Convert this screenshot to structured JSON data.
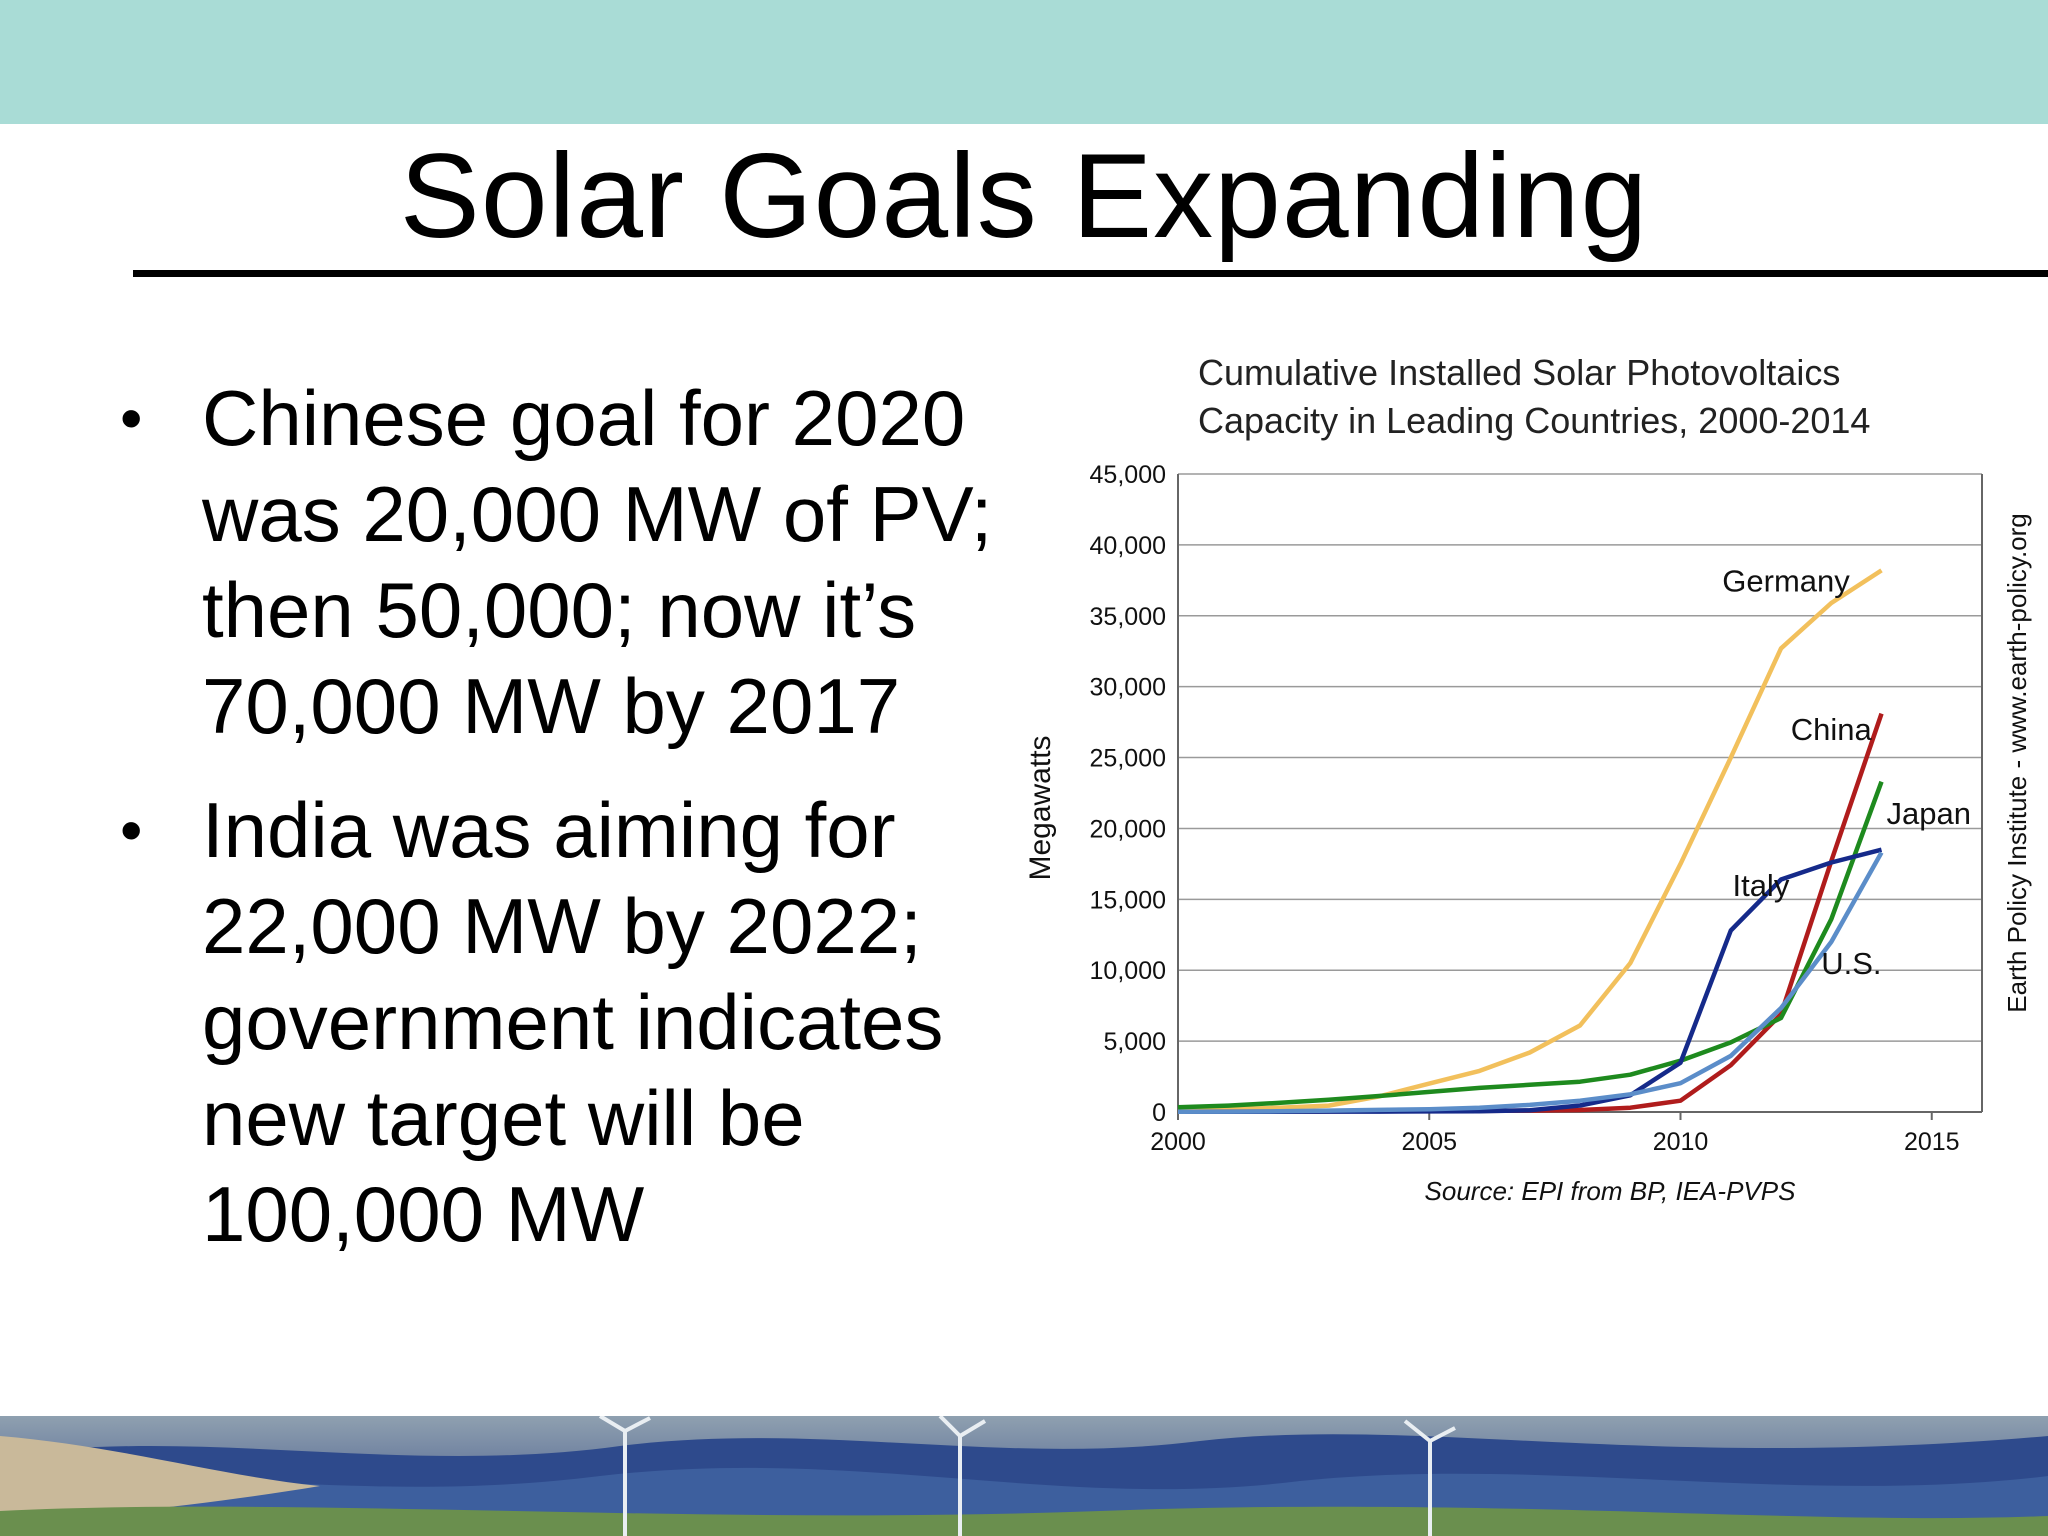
{
  "slide": {
    "title": "Solar Goals Expanding",
    "bullets": [
      "Chinese goal for 2020\nwas 20,000 MW of PV;\nthen 50,000; now it’s\n70,000 MW by 2017",
      "India was aiming for\n22,000 MW by 2022;\ngovernment indicates\nnew target will be\n100,000 MW"
    ],
    "bullet_glyph": "•",
    "colors": {
      "top_band": "#a9dcd6"
    }
  },
  "chart_data": {
    "type": "line",
    "title": "Cumulative Installed Solar Photovoltaics\nCapacity in Leading Countries, 2000-2014",
    "xlabel": "",
    "ylabel": "Megawatts",
    "source": "Source: EPI from BP, IEA-PVPS",
    "side_credit": "Earth Policy Institute - www.earth-policy.org",
    "xlim": [
      2000,
      2016
    ],
    "ylim": [
      0,
      45000
    ],
    "xticks": [
      2000,
      2005,
      2010,
      2015
    ],
    "xtick_labels": [
      "2000",
      "2005",
      "2010",
      "2015"
    ],
    "yticks": [
      0,
      5000,
      10000,
      15000,
      20000,
      25000,
      30000,
      35000,
      40000,
      45000
    ],
    "ytick_labels": [
      "0",
      "5,000",
      "10,000",
      "15,000",
      "20,000",
      "25,000",
      "30,000",
      "35,000",
      "40,000",
      "45,000"
    ],
    "grid": true,
    "legend": "inline labels",
    "x": [
      2000,
      2001,
      2002,
      2003,
      2004,
      2005,
      2006,
      2007,
      2008,
      2009,
      2010,
      2011,
      2012,
      2013,
      2014
    ],
    "series": [
      {
        "name": "Germany",
        "color": "#f2c05c",
        "values": [
          100,
          180,
          300,
          450,
          1100,
          2000,
          2900,
          4200,
          6100,
          10500,
          17500,
          25000,
          32700,
          35900,
          38200
        ]
      },
      {
        "name": "China",
        "color": "#b01c1c",
        "values": [
          20,
          25,
          30,
          40,
          60,
          70,
          80,
          100,
          140,
          300,
          800,
          3300,
          6900,
          17700,
          28100
        ]
      },
      {
        "name": "Japan",
        "color": "#1e8a1e",
        "values": [
          330,
          450,
          640,
          860,
          1130,
          1420,
          1700,
          1920,
          2140,
          2630,
          3620,
          4910,
          6630,
          13600,
          23300
        ]
      },
      {
        "name": "Italy",
        "color": "#152a8a",
        "values": [
          20,
          20,
          22,
          26,
          30,
          40,
          50,
          120,
          460,
          1180,
          3480,
          12800,
          16400,
          17600,
          18500
        ]
      },
      {
        "name": "U.S.",
        "color": "#5b8dc9",
        "values": [
          20,
          30,
          50,
          100,
          150,
          200,
          300,
          500,
          800,
          1250,
          2030,
          3960,
          7330,
          12000,
          18300
        ]
      }
    ]
  }
}
